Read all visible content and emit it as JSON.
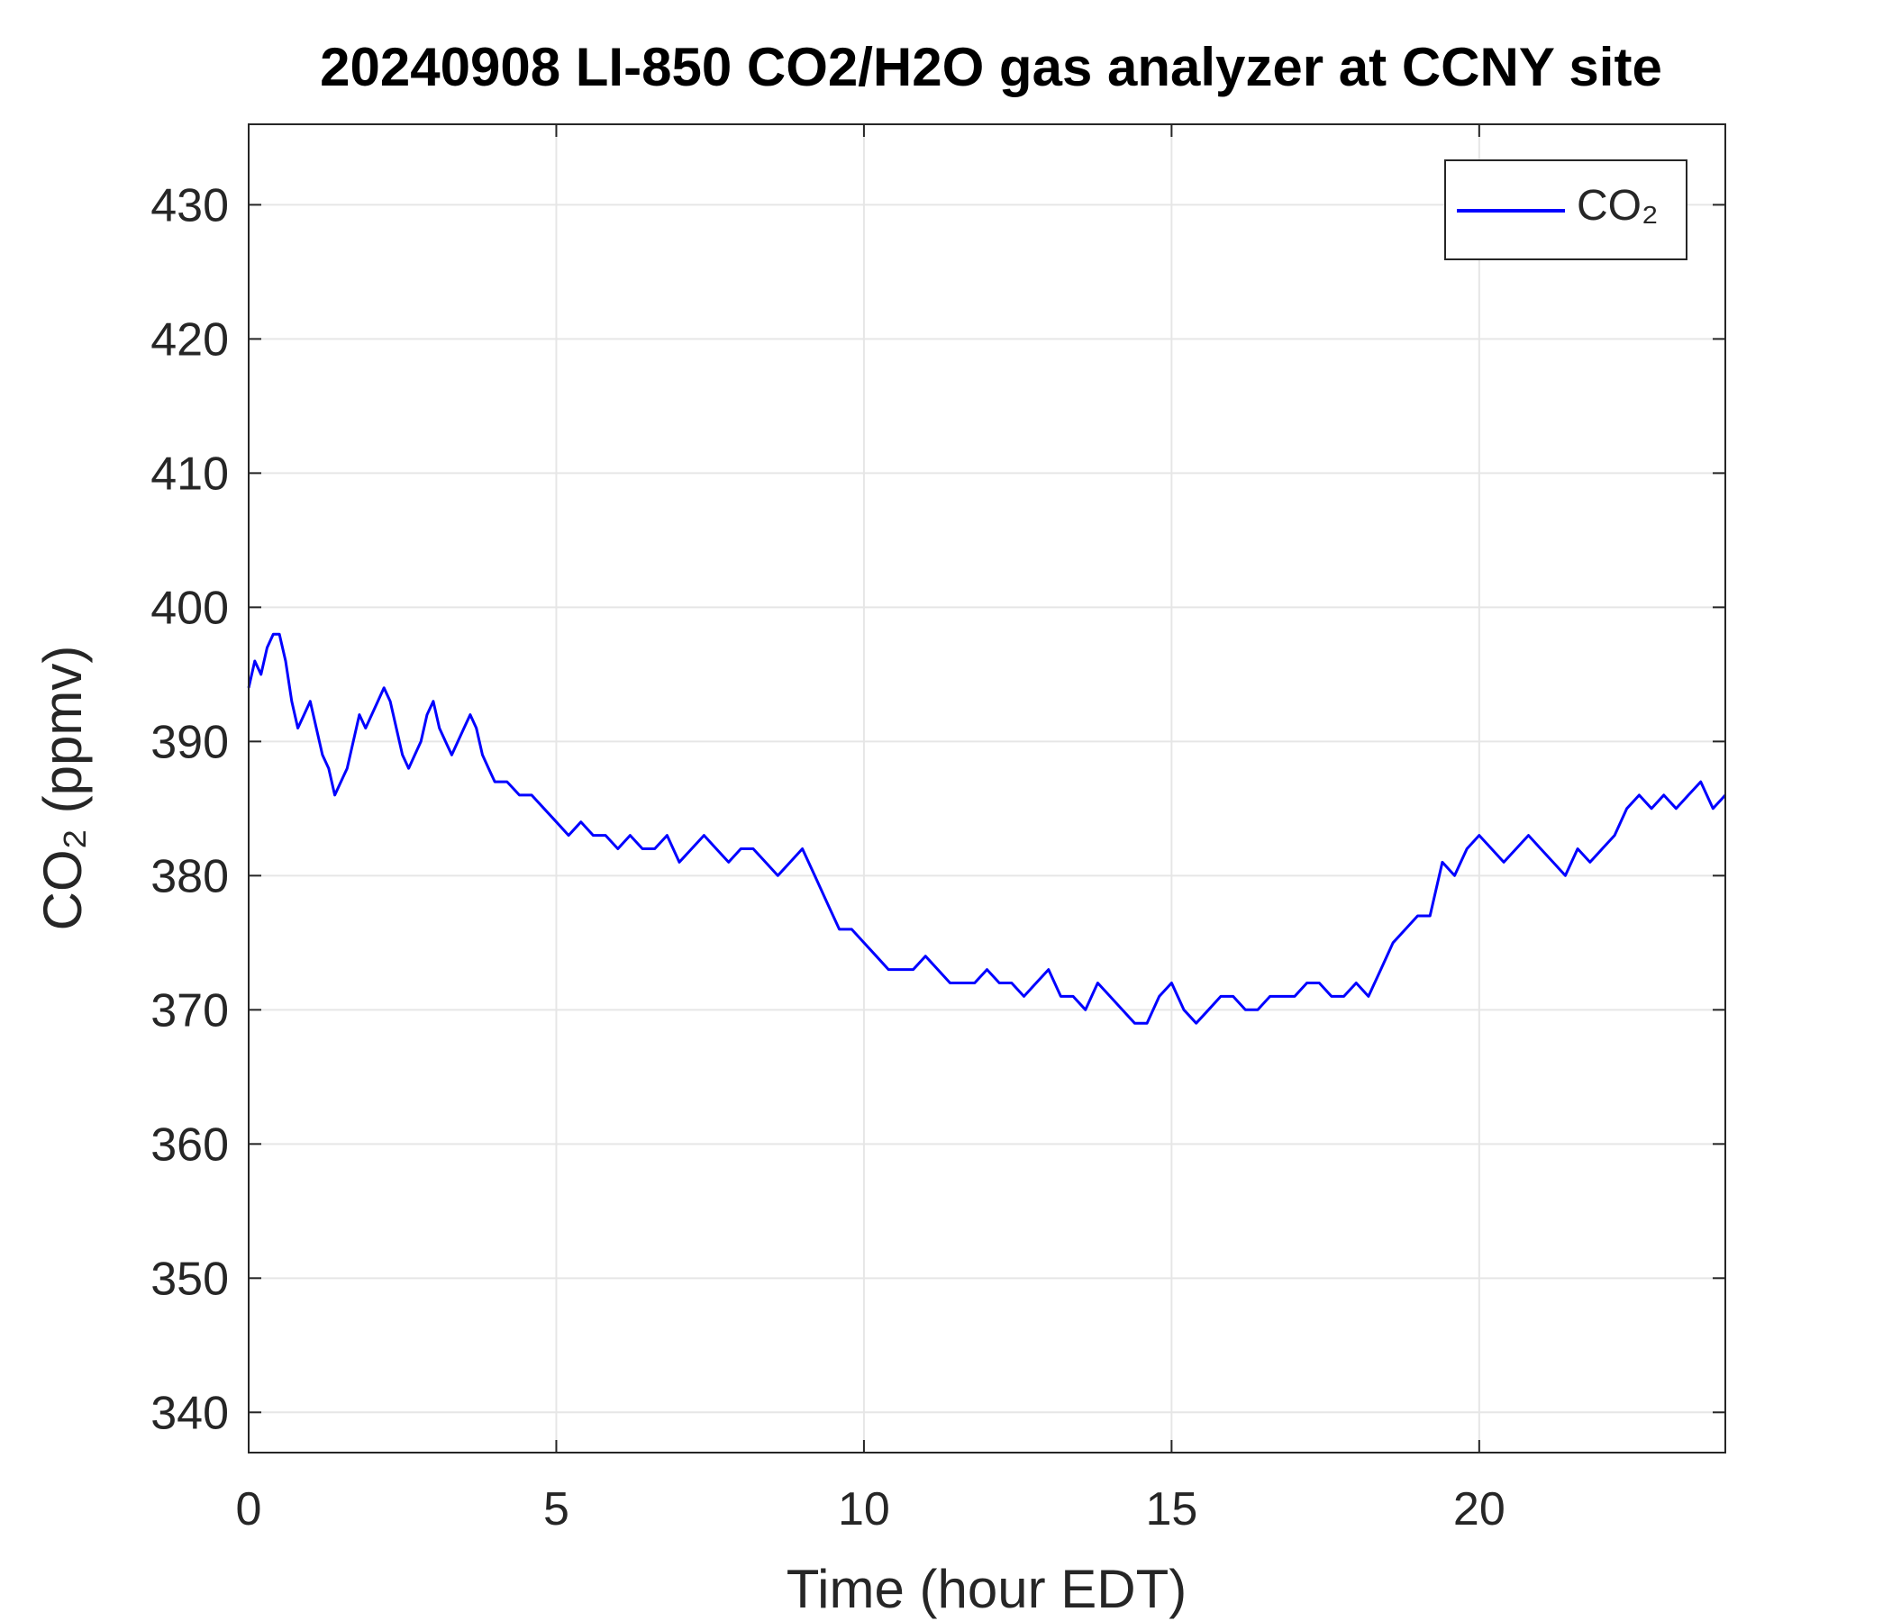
{
  "chart_data": {
    "type": "line",
    "title": "20240908 LI-850 CO2/H2O gas analyzer at CCNY site",
    "xlabel": "Time (hour EDT)",
    "ylabel": "CO₂ (ppmv)",
    "xlim": [
      0,
      24
    ],
    "ylim": [
      337,
      436
    ],
    "xticks": [
      0,
      5,
      10,
      15,
      20
    ],
    "yticks": [
      340,
      350,
      360,
      370,
      380,
      390,
      400,
      410,
      420,
      430
    ],
    "grid": true,
    "legend_position": "top-right",
    "colors": {
      "series": "#0000ff",
      "grid": "#e6e6e6",
      "axis": "#262626"
    },
    "series": [
      {
        "name": "CO₂",
        "x": [
          0,
          0.1,
          0.2,
          0.3,
          0.4,
          0.5,
          0.6,
          0.7,
          0.8,
          0.9,
          1.0,
          1.1,
          1.2,
          1.3,
          1.4,
          1.5,
          1.6,
          1.7,
          1.8,
          1.9,
          2.0,
          2.1,
          2.2,
          2.3,
          2.4,
          2.5,
          2.6,
          2.7,
          2.8,
          2.9,
          3.0,
          3.1,
          3.2,
          3.3,
          3.4,
          3.5,
          3.6,
          3.7,
          3.8,
          3.9,
          4.0,
          4.2,
          4.4,
          4.6,
          4.8,
          5.0,
          5.2,
          5.4,
          5.6,
          5.8,
          6.0,
          6.2,
          6.4,
          6.6,
          6.8,
          7.0,
          7.2,
          7.4,
          7.6,
          7.8,
          8.0,
          8.2,
          8.4,
          8.6,
          8.8,
          9.0,
          9.2,
          9.4,
          9.6,
          9.8,
          10.0,
          10.2,
          10.4,
          10.6,
          10.8,
          11.0,
          11.2,
          11.4,
          11.6,
          11.8,
          12.0,
          12.2,
          12.4,
          12.6,
          12.8,
          13.0,
          13.2,
          13.4,
          13.6,
          13.8,
          14.0,
          14.2,
          14.4,
          14.6,
          14.8,
          15.0,
          15.2,
          15.4,
          15.6,
          15.8,
          16.0,
          16.2,
          16.4,
          16.6,
          16.8,
          17.0,
          17.2,
          17.4,
          17.6,
          17.8,
          18.0,
          18.2,
          18.4,
          18.6,
          18.8,
          19.0,
          19.2,
          19.4,
          19.6,
          19.8,
          20.0,
          20.2,
          20.4,
          20.6,
          20.8,
          21.0,
          21.2,
          21.4,
          21.6,
          21.8,
          22.0,
          22.2,
          22.4,
          22.6,
          22.8,
          23.0,
          23.2,
          23.4,
          23.6,
          23.8,
          24.0
        ],
        "y": [
          394,
          396,
          395,
          397,
          398,
          398,
          396,
          393,
          391,
          392,
          393,
          391,
          389,
          388,
          386,
          387,
          388,
          390,
          392,
          391,
          392,
          393,
          394,
          393,
          391,
          389,
          388,
          389,
          390,
          392,
          393,
          391,
          390,
          389,
          390,
          391,
          392,
          391,
          389,
          388,
          387,
          387,
          386,
          386,
          385,
          384,
          383,
          384,
          383,
          383,
          382,
          383,
          382,
          382,
          383,
          381,
          382,
          383,
          382,
          381,
          382,
          382,
          381,
          380,
          381,
          382,
          380,
          378,
          376,
          376,
          375,
          374,
          373,
          373,
          373,
          374,
          373,
          372,
          372,
          372,
          373,
          372,
          372,
          371,
          372,
          373,
          371,
          371,
          370,
          372,
          371,
          370,
          369,
          369,
          371,
          372,
          370,
          369,
          370,
          371,
          371,
          370,
          370,
          371,
          371,
          371,
          372,
          372,
          371,
          371,
          372,
          371,
          373,
          375,
          376,
          377,
          377,
          381,
          380,
          382,
          383,
          382,
          381,
          382,
          383,
          382,
          381,
          380,
          382,
          381,
          382,
          383,
          385,
          386,
          385,
          386,
          385,
          386,
          387,
          385,
          386
        ]
      }
    ]
  }
}
